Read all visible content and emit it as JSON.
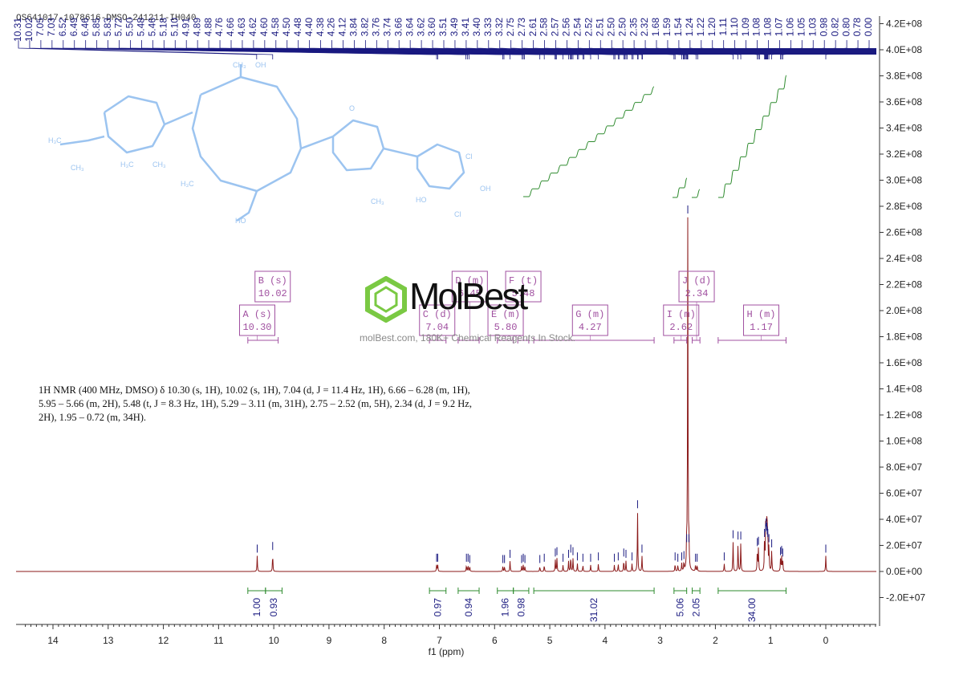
{
  "sample_id": "OS641017-1078616-DMSO-241211-IH040",
  "nmr_description": "1H NMR (400 MHz, DMSO) δ 10.30 (s, 1H), 10.02 (s, 1H), 7.04 (d, J = 11.4 Hz, 1H), 6.66 – 6.28 (m, 1H), 5.95 – 5.66 (m, 2H), 5.48 (t, J = 8.3 Hz, 1H), 5.29 – 3.11 (m, 31H), 2.75 – 2.52 (m, 5H), 2.34 (d, J = 9.2 Hz, 2H), 1.95 – 0.72 (m, 34H).",
  "watermark": {
    "name": "MolBest",
    "tagline": "molBest.com, 180K+ Chemical Reagents In Stock."
  },
  "colors": {
    "spectrum": "#8b1a1a",
    "peak_marker": "#1a1a80",
    "integral": "#2e8b2e",
    "multiplet_box": "#a050a0",
    "axis": "#333333",
    "structure": "#9cc4f0"
  },
  "chart_data": {
    "type": "line",
    "xlabel": "f1 (ppm)",
    "x_reversed": true,
    "xlim": [
      14.6,
      -0.95
    ],
    "ylim": [
      -40000000.0,
      430000000.0
    ],
    "x_ticks": [
      14,
      13,
      12,
      11,
      10,
      9,
      8,
      7,
      6,
      5,
      4,
      3,
      2,
      1,
      0
    ],
    "y_ticks": [
      {
        "v": 420000000.0,
        "label": "4.2E+08"
      },
      {
        "v": 400000000.0,
        "label": "4.0E+08"
      },
      {
        "v": 380000000.0,
        "label": "3.8E+08"
      },
      {
        "v": 360000000.0,
        "label": "3.6E+08"
      },
      {
        "v": 340000000.0,
        "label": "3.4E+08"
      },
      {
        "v": 320000000.0,
        "label": "3.2E+08"
      },
      {
        "v": 300000000.0,
        "label": "3.0E+08"
      },
      {
        "v": 280000000.0,
        "label": "2.8E+08"
      },
      {
        "v": 260000000.0,
        "label": "2.6E+08"
      },
      {
        "v": 240000000.0,
        "label": "2.4E+08"
      },
      {
        "v": 220000000.0,
        "label": "2.2E+08"
      },
      {
        "v": 200000000.0,
        "label": "2.0E+08"
      },
      {
        "v": 180000000.0,
        "label": "1.8E+08"
      },
      {
        "v": 160000000.0,
        "label": "1.6E+08"
      },
      {
        "v": 140000000.0,
        "label": "1.4E+08"
      },
      {
        "v": 120000000.0,
        "label": "1.2E+08"
      },
      {
        "v": 100000000.0,
        "label": "1.0E+08"
      },
      {
        "v": 80000000.0,
        "label": "8.0E+07"
      },
      {
        "v": 60000000.0,
        "label": "6.0E+07"
      },
      {
        "v": 40000000.0,
        "label": "4.0E+07"
      },
      {
        "v": 20000000.0,
        "label": "2.0E+07"
      },
      {
        "v": 0,
        "label": "0.0E+00"
      },
      {
        "v": -20000000.0,
        "label": "-2.0E+07"
      }
    ],
    "peaks": [
      {
        "x": 10.3,
        "y": 12000000.0
      },
      {
        "x": 10.02,
        "y": 14000000.0
      },
      {
        "x": 7.05,
        "y": 5000000.0
      },
      {
        "x": 7.03,
        "y": 5000000.0
      },
      {
        "x": 6.51,
        "y": 5000000.0
      },
      {
        "x": 6.48,
        "y": 5000000.0
      },
      {
        "x": 6.45,
        "y": 4000000.0
      },
      {
        "x": 5.85,
        "y": 4000000.0
      },
      {
        "x": 5.82,
        "y": 4000000.0
      },
      {
        "x": 5.72,
        "y": 8000000.0
      },
      {
        "x": 5.51,
        "y": 4000000.0
      },
      {
        "x": 5.48,
        "y": 5000000.0
      },
      {
        "x": 5.45,
        "y": 4000000.0
      },
      {
        "x": 5.18,
        "y": 4000000.0
      },
      {
        "x": 5.1,
        "y": 5000000.0
      },
      {
        "x": 4.9,
        "y": 9000000.0
      },
      {
        "x": 4.87,
        "y": 10000000.0
      },
      {
        "x": 4.76,
        "y": 5000000.0
      },
      {
        "x": 4.66,
        "y": 8000000.0
      },
      {
        "x": 4.62,
        "y": 12000000.0
      },
      {
        "x": 4.58,
        "y": 10000000.0
      },
      {
        "x": 4.5,
        "y": 6000000.0
      },
      {
        "x": 4.4,
        "y": 5000000.0
      },
      {
        "x": 4.26,
        "y": 5000000.0
      },
      {
        "x": 4.12,
        "y": 6000000.0
      },
      {
        "x": 3.83,
        "y": 5000000.0
      },
      {
        "x": 3.76,
        "y": 6000000.0
      },
      {
        "x": 3.66,
        "y": 9000000.0
      },
      {
        "x": 3.62,
        "y": 8000000.0
      },
      {
        "x": 3.51,
        "y": 6000000.0
      },
      {
        "x": 3.41,
        "y": 46000000.0
      },
      {
        "x": 3.33,
        "y": 12000000.0
      },
      {
        "x": 2.73,
        "y": 6000000.0
      },
      {
        "x": 2.68,
        "y": 5000000.0
      },
      {
        "x": 2.61,
        "y": 6000000.0
      },
      {
        "x": 2.57,
        "y": 7000000.0
      },
      {
        "x": 2.52,
        "y": 20000000.0
      },
      {
        "x": 2.5,
        "y": 272000000.0
      },
      {
        "x": 2.48,
        "y": 20000000.0
      },
      {
        "x": 2.36,
        "y": 5000000.0
      },
      {
        "x": 2.33,
        "y": 5000000.0
      },
      {
        "x": 1.84,
        "y": 6000000.0
      },
      {
        "x": 1.68,
        "y": 23000000.0
      },
      {
        "x": 1.59,
        "y": 22000000.0
      },
      {
        "x": 1.54,
        "y": 22000000.0
      },
      {
        "x": 1.24,
        "y": 17000000.0
      },
      {
        "x": 1.22,
        "y": 18000000.0
      },
      {
        "x": 1.11,
        "y": 24000000.0
      },
      {
        "x": 1.09,
        "y": 28000000.0
      },
      {
        "x": 1.08,
        "y": 32000000.0
      },
      {
        "x": 1.07,
        "y": 29000000.0
      },
      {
        "x": 1.06,
        "y": 26000000.0
      },
      {
        "x": 1.05,
        "y": 24000000.0
      },
      {
        "x": 1.03,
        "y": 20000000.0
      },
      {
        "x": 0.98,
        "y": 16000000.0
      },
      {
        "x": 0.82,
        "y": 10000000.0
      },
      {
        "x": 0.8,
        "y": 11000000.0
      },
      {
        "x": 0.78,
        "y": 9000000.0
      },
      {
        "x": 0.0,
        "y": 12000000.0
      }
    ],
    "peak_labels": [
      "10.31",
      "10.02",
      "7.05",
      "7.03",
      "6.52",
      "6.49",
      "6.46",
      "5.85",
      "5.83",
      "5.72",
      "5.50",
      "5.48",
      "5.46",
      "5.18",
      "5.10",
      "4.91",
      "4.89",
      "4.88",
      "4.76",
      "4.66",
      "4.63",
      "4.62",
      "4.60",
      "4.58",
      "4.50",
      "4.48",
      "4.40",
      "4.38",
      "4.26",
      "4.12",
      "3.84",
      "3.82",
      "3.76",
      "3.74",
      "3.66",
      "3.64",
      "3.62",
      "3.60",
      "3.51",
      "3.49",
      "3.41",
      "3.40",
      "3.33",
      "3.32",
      "2.75",
      "2.73",
      "2.61",
      "2.58",
      "2.57",
      "2.56",
      "2.54",
      "2.52",
      "2.51",
      "2.50",
      "2.50",
      "2.35",
      "2.32",
      "1.68",
      "1.59",
      "1.54",
      "1.24",
      "1.22",
      "1.20",
      "1.11",
      "1.10",
      "1.09",
      "1.08",
      "1.08",
      "1.07",
      "1.06",
      "1.05",
      "1.03",
      "0.98",
      "0.82",
      "0.80",
      "0.78",
      "0.00"
    ],
    "multiplets": [
      {
        "label": "A (s)",
        "shift": "10.30",
        "x": 10.3,
        "level": 2,
        "range": [
          10.47,
          9.92
        ]
      },
      {
        "label": "B (s)",
        "shift": "10.02",
        "x": 10.02,
        "level": 1,
        "range": null
      },
      {
        "label": "C (d)",
        "shift": "7.04",
        "x": 7.04,
        "level": 2,
        "range": [
          7.18,
          6.88
        ]
      },
      {
        "label": "D (m)",
        "shift": "6.45",
        "x": 6.45,
        "level": 1,
        "range": [
          6.66,
          6.28
        ]
      },
      {
        "label": "E (m)",
        "shift": "5.80",
        "x": 5.8,
        "level": 2,
        "range": [
          5.95,
          5.66
        ]
      },
      {
        "label": "F (t)",
        "shift": "5.48",
        "x": 5.48,
        "level": 1,
        "range": [
          5.58,
          5.38
        ]
      },
      {
        "label": "G (m)",
        "shift": "4.27",
        "x": 4.27,
        "level": 2,
        "range": [
          5.29,
          3.11
        ]
      },
      {
        "label": "I (m)",
        "shift": "2.62",
        "x": 2.62,
        "level": 2,
        "range": [
          2.75,
          2.52
        ]
      },
      {
        "label": "J (d)",
        "shift": "2.34",
        "x": 2.34,
        "level": 1,
        "range": [
          2.42,
          2.28
        ]
      },
      {
        "label": "H (m)",
        "shift": "1.17",
        "x": 1.17,
        "level": 2,
        "range": [
          1.95,
          0.72
        ]
      }
    ],
    "integrals": [
      {
        "range": [
          10.47,
          10.15
        ],
        "value": "1.00"
      },
      {
        "range": [
          10.15,
          9.85
        ],
        "value": "0.93"
      },
      {
        "range": [
          7.18,
          6.88
        ],
        "value": "0.97"
      },
      {
        "range": [
          6.66,
          6.28
        ],
        "value": "0.94"
      },
      {
        "range": [
          5.95,
          5.66
        ],
        "value": "1.96"
      },
      {
        "range": [
          5.66,
          5.38
        ],
        "value": "0.98"
      },
      {
        "range": [
          5.29,
          3.11
        ],
        "value": "31.02"
      },
      {
        "range": [
          2.75,
          2.52
        ],
        "value": "5.06"
      },
      {
        "range": [
          2.42,
          2.28
        ],
        "value": "2.05"
      },
      {
        "range": [
          1.95,
          0.72
        ],
        "value": "34.00"
      }
    ]
  }
}
